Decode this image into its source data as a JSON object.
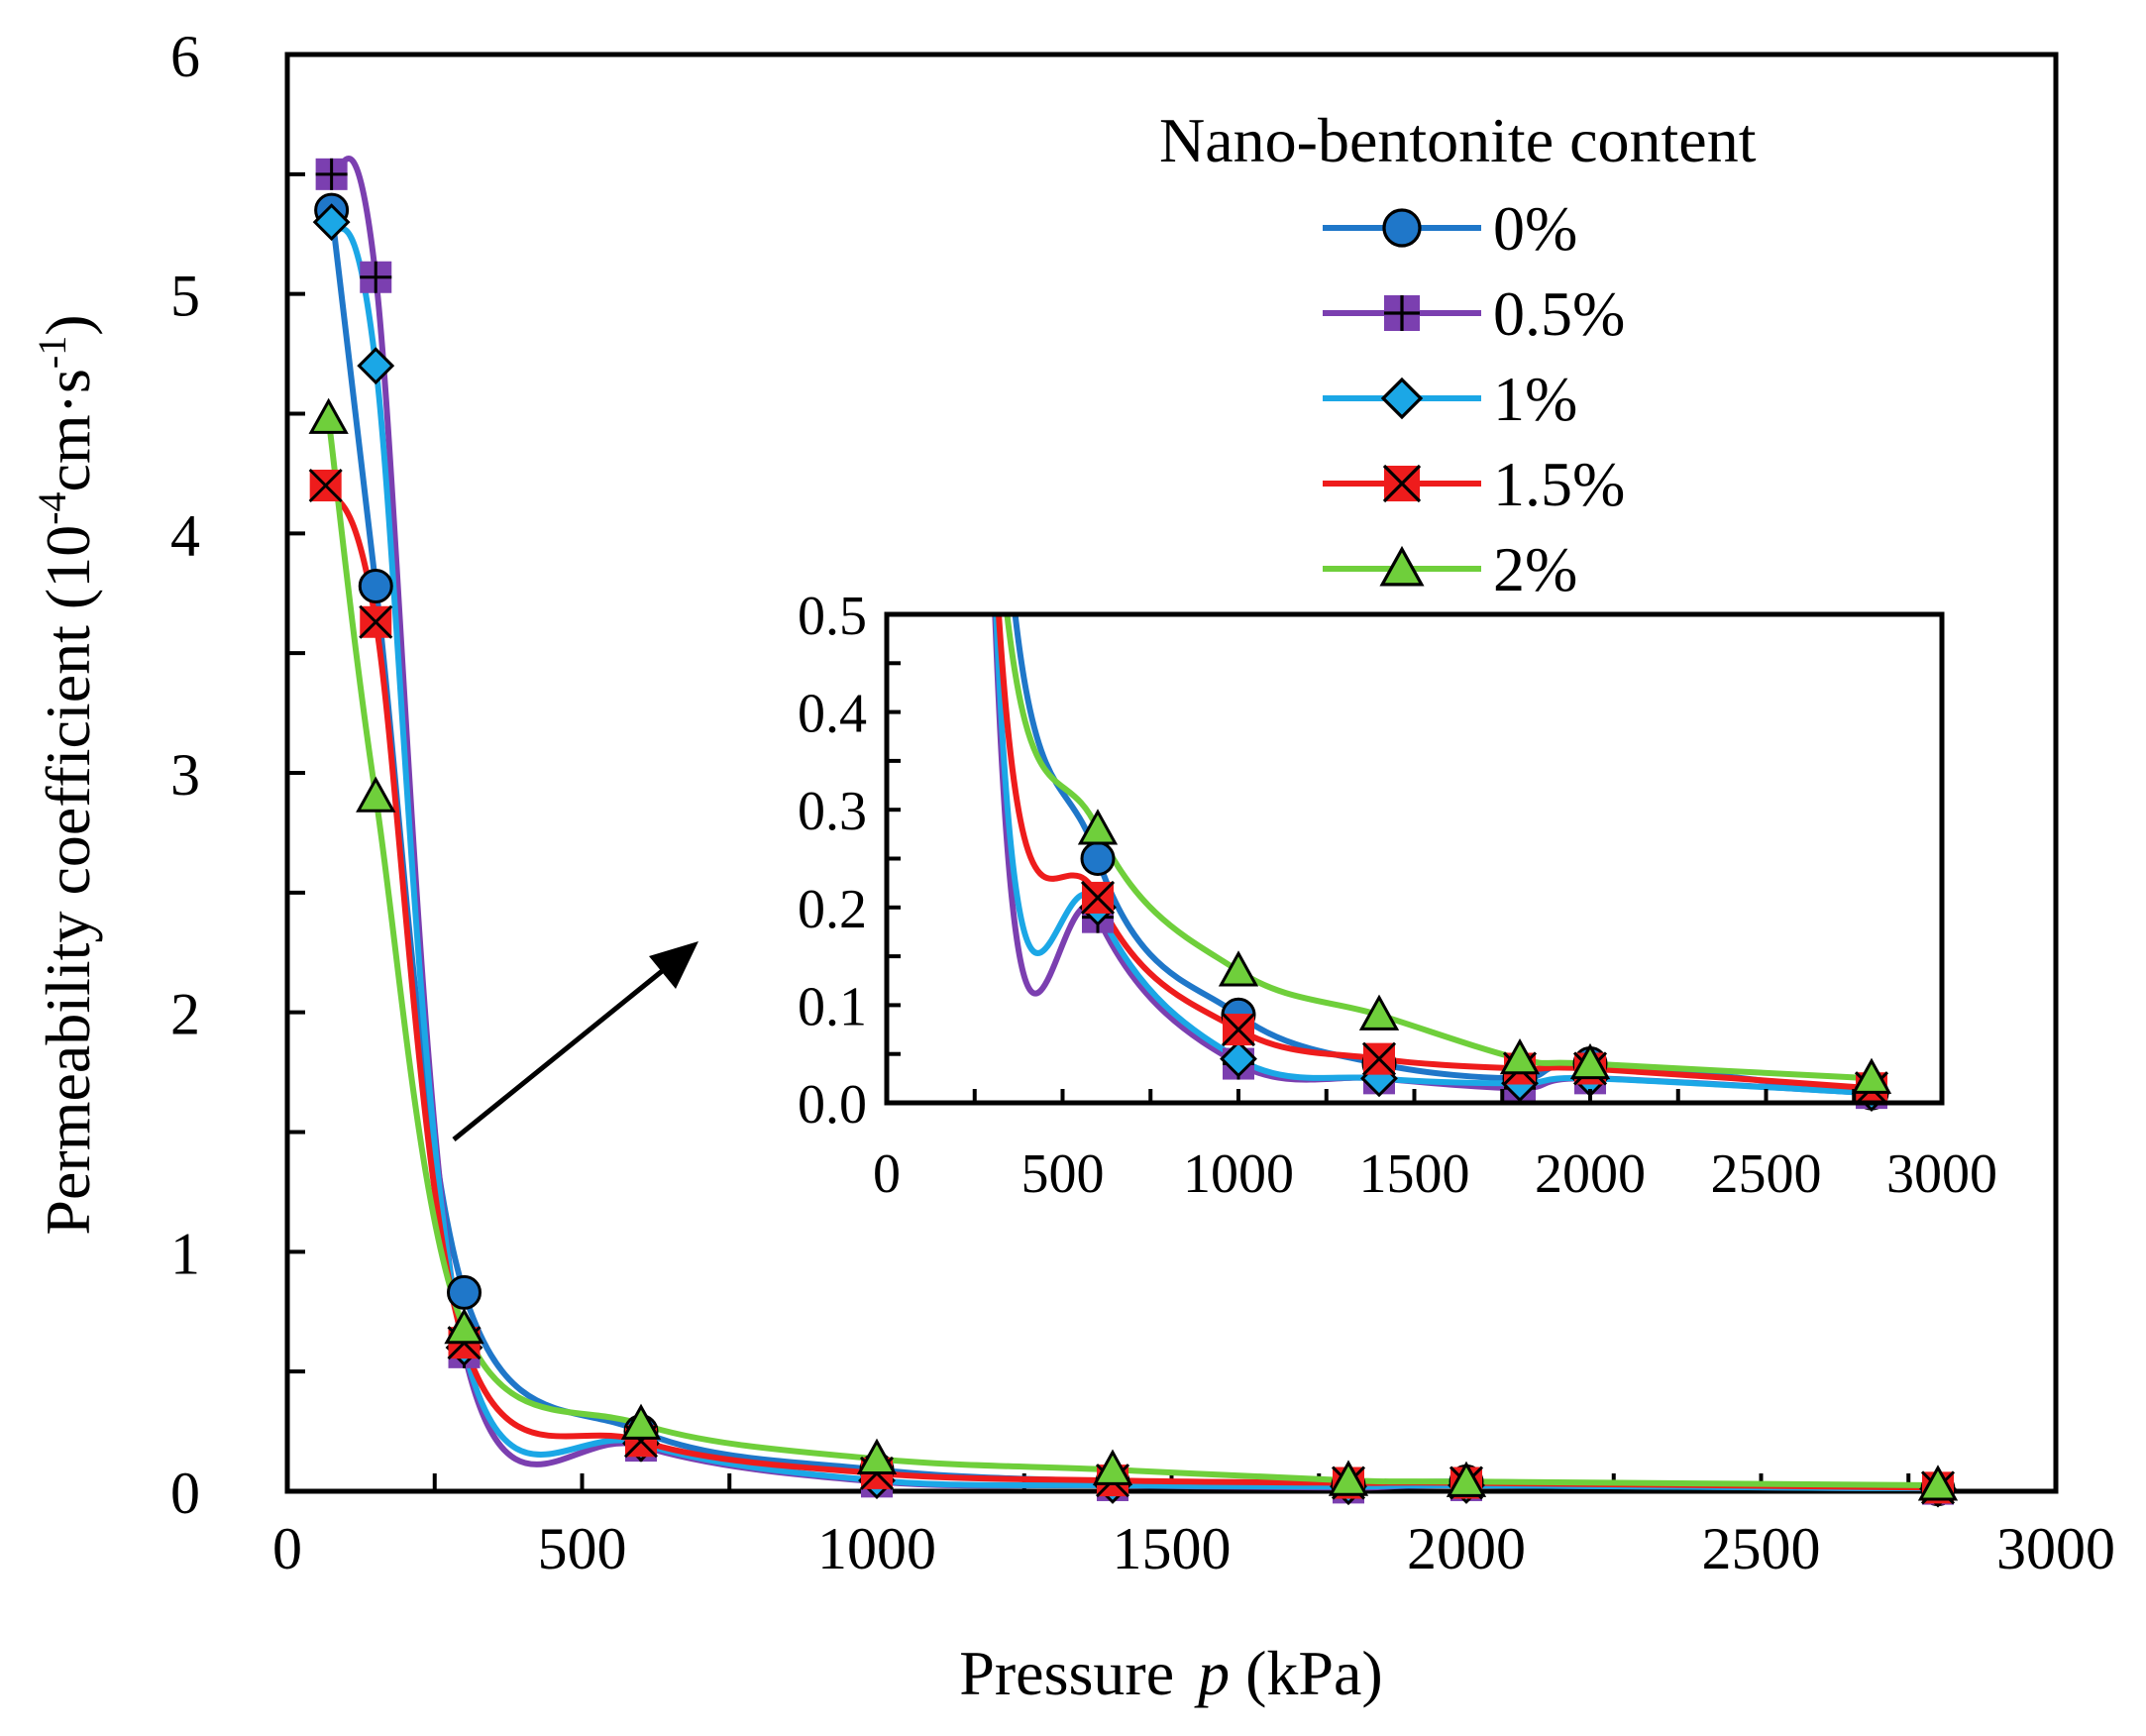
{
  "chart_data": {
    "type": "line",
    "title": "",
    "xlabel": "Pressure",
    "xlabel_var": "p",
    "xlabel_unit": "(kPa)",
    "ylabel_main": "Permeability coefficient (10",
    "ylabel_exp1": "-4",
    "ylabel_mid": "cm·s",
    "ylabel_exp2": "-1",
    "ylabel_end": ")",
    "xlim": [
      0,
      3000
    ],
    "ylim": [
      0,
      6
    ],
    "x_ticks": [
      "0",
      "500",
      "1000",
      "1500",
      "2000",
      "2500",
      "3000"
    ],
    "y_ticks": [
      "0",
      "1",
      "2",
      "3",
      "4",
      "5",
      "6"
    ],
    "legend_title": "Nano-bentonite content",
    "legend_position": "top-right",
    "series": [
      {
        "name": "0%",
        "color": "#1f77c9",
        "marker": "circle",
        "x": [
          75,
          150,
          300,
          600,
          1000,
          1400,
          1800,
          2000,
          2800
        ],
        "y": [
          5.35,
          3.78,
          0.83,
          0.25,
          0.09,
          0.04,
          0.025,
          0.04,
          0.01
        ]
      },
      {
        "name": "0.5%",
        "color": "#7b3fb0",
        "marker": "plus-square",
        "x": [
          75,
          150,
          300,
          600,
          1000,
          1400,
          1800,
          2000,
          2800
        ],
        "y": [
          5.5,
          5.07,
          0.58,
          0.19,
          0.04,
          0.025,
          0.015,
          0.025,
          0.01
        ]
      },
      {
        "name": "1%",
        "color": "#1ba7e6",
        "marker": "diamond",
        "x": [
          75,
          150,
          300,
          600,
          1000,
          1400,
          1800,
          2000,
          2800
        ],
        "y": [
          5.3,
          4.7,
          0.6,
          0.2,
          0.045,
          0.025,
          0.02,
          0.025,
          0.01
        ]
      },
      {
        "name": "1.5%",
        "color": "#ee1c1c",
        "marker": "x-square",
        "x": [
          65,
          150,
          300,
          600,
          1000,
          1400,
          1800,
          2000,
          2800
        ],
        "y": [
          4.2,
          3.63,
          0.62,
          0.21,
          0.075,
          0.045,
          0.035,
          0.035,
          0.015
        ]
      },
      {
        "name": "2%",
        "color": "#6fcf3b",
        "marker": "triangle",
        "x": [
          70,
          150,
          300,
          600,
          1000,
          1400,
          1800,
          2000,
          2800
        ],
        "y": [
          4.48,
          2.9,
          0.68,
          0.28,
          0.135,
          0.09,
          0.045,
          0.04,
          0.025
        ]
      }
    ],
    "inset": {
      "xlim": [
        0,
        3000
      ],
      "ylim": [
        0,
        0.5
      ],
      "x_ticks": [
        "0",
        "500",
        "1000",
        "1500",
        "2000",
        "2500",
        "3000"
      ],
      "y_ticks": [
        "0.0",
        "0.1",
        "0.2",
        "0.3",
        "0.4",
        "0.5"
      ]
    }
  }
}
